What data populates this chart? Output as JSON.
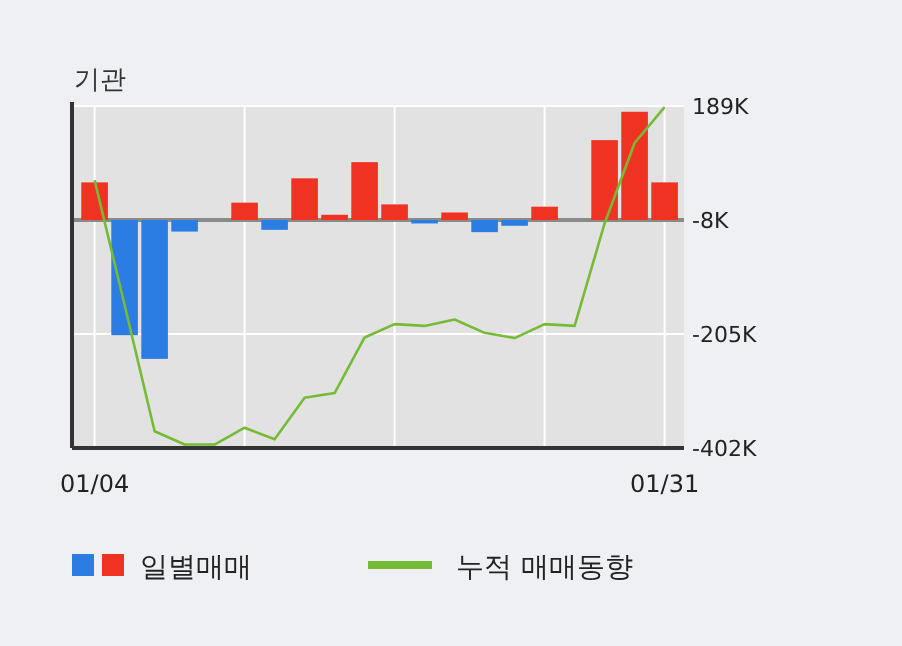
{
  "chart_data": {
    "type": "bar",
    "title": "기관",
    "categories": [
      "01/04",
      null,
      null,
      null,
      null,
      null,
      null,
      null,
      null,
      null,
      null,
      null,
      null,
      null,
      null,
      null,
      null,
      null,
      null,
      "01/31"
    ],
    "series": [
      {
        "name": "일별매매",
        "colors": [
          "#f03222",
          "#2b7de3",
          "#2b7de3",
          "#2b7de3",
          null,
          "#f03222",
          "#2b7de3",
          "#f03222",
          "#f03222",
          "#f03222",
          "#f03222",
          "#2b7de3",
          "#f03222",
          "#2b7de3",
          "#2b7de3",
          "#f03222",
          null,
          "#f03222",
          "#f03222",
          "#f03222"
        ],
        "values": [
          65000,
          -199000,
          -240000,
          -20000,
          null,
          30000,
          -17000,
          72000,
          9000,
          100000,
          27000,
          -6000,
          13000,
          -21000,
          -10000,
          23000,
          null,
          138000,
          187000,
          65000
        ],
        "base": [
          -8000,
          -8000,
          -8000,
          -8000,
          null,
          -8000,
          -8000,
          -8000,
          -8000,
          -8000,
          -8000,
          -8000,
          -8000,
          -8000,
          -8000,
          -8000,
          null,
          -8000,
          -8000,
          -8000
        ]
      },
      {
        "name": "누적 매매동향",
        "type": "line",
        "color": "#76bb35",
        "values": [
          61000,
          -155000,
          -373000,
          -396000,
          -396000,
          -367000,
          -387000,
          -315000,
          -307000,
          -211000,
          -188000,
          -191000,
          -180000,
          -203000,
          -212000,
          -188000,
          -191000,
          -14000,
          125000,
          187000
        ]
      }
    ],
    "ylim": [
      -402000,
      189000
    ],
    "yticks": [
      {
        "value": 189000,
        "label": "189K"
      },
      {
        "value": -8000,
        "label": "-8K"
      },
      {
        "value": -205000,
        "label": "-205K"
      },
      {
        "value": -402000,
        "label": "-402K"
      }
    ],
    "ref_lines": [
      {
        "axis": "y",
        "value": -8000,
        "color": "#8a8a8a"
      }
    ],
    "grid": true,
    "legend": "bottom",
    "marker": "none",
    "line_style": "solid"
  }
}
